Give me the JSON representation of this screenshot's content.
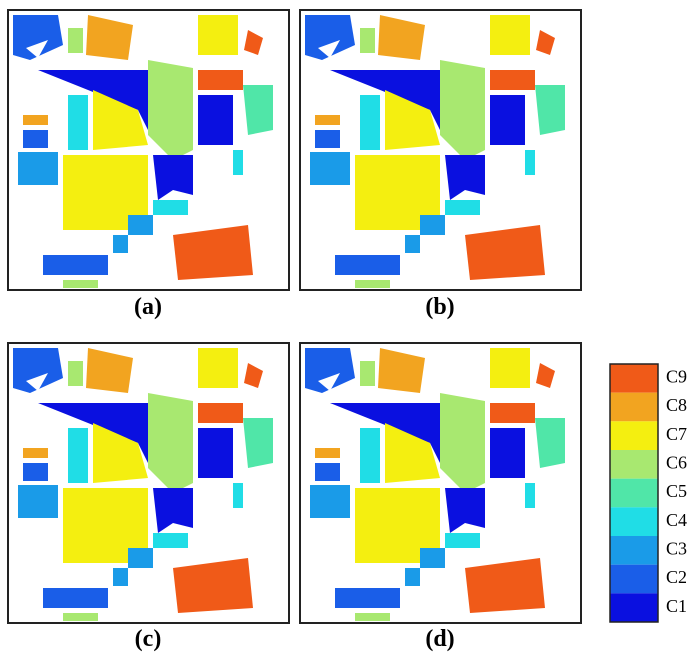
{
  "panels": [
    {
      "label": "(a)"
    },
    {
      "label": "(b)"
    },
    {
      "label": "(c)"
    },
    {
      "label": "(d)"
    }
  ],
  "legend": [
    {
      "label": "C9",
      "color": "#f05a18"
    },
    {
      "label": "C8",
      "color": "#f2a420"
    },
    {
      "label": "C7",
      "color": "#f4ef10"
    },
    {
      "label": "C6",
      "color": "#a8e870"
    },
    {
      "label": "C5",
      "color": "#50e6a8"
    },
    {
      "label": "C4",
      "color": "#20dde6"
    },
    {
      "label": "C3",
      "color": "#1a9be8"
    },
    {
      "label": "C2",
      "color": "#1a5ee8"
    },
    {
      "label": "C1",
      "color": "#0a10e0"
    }
  ]
}
